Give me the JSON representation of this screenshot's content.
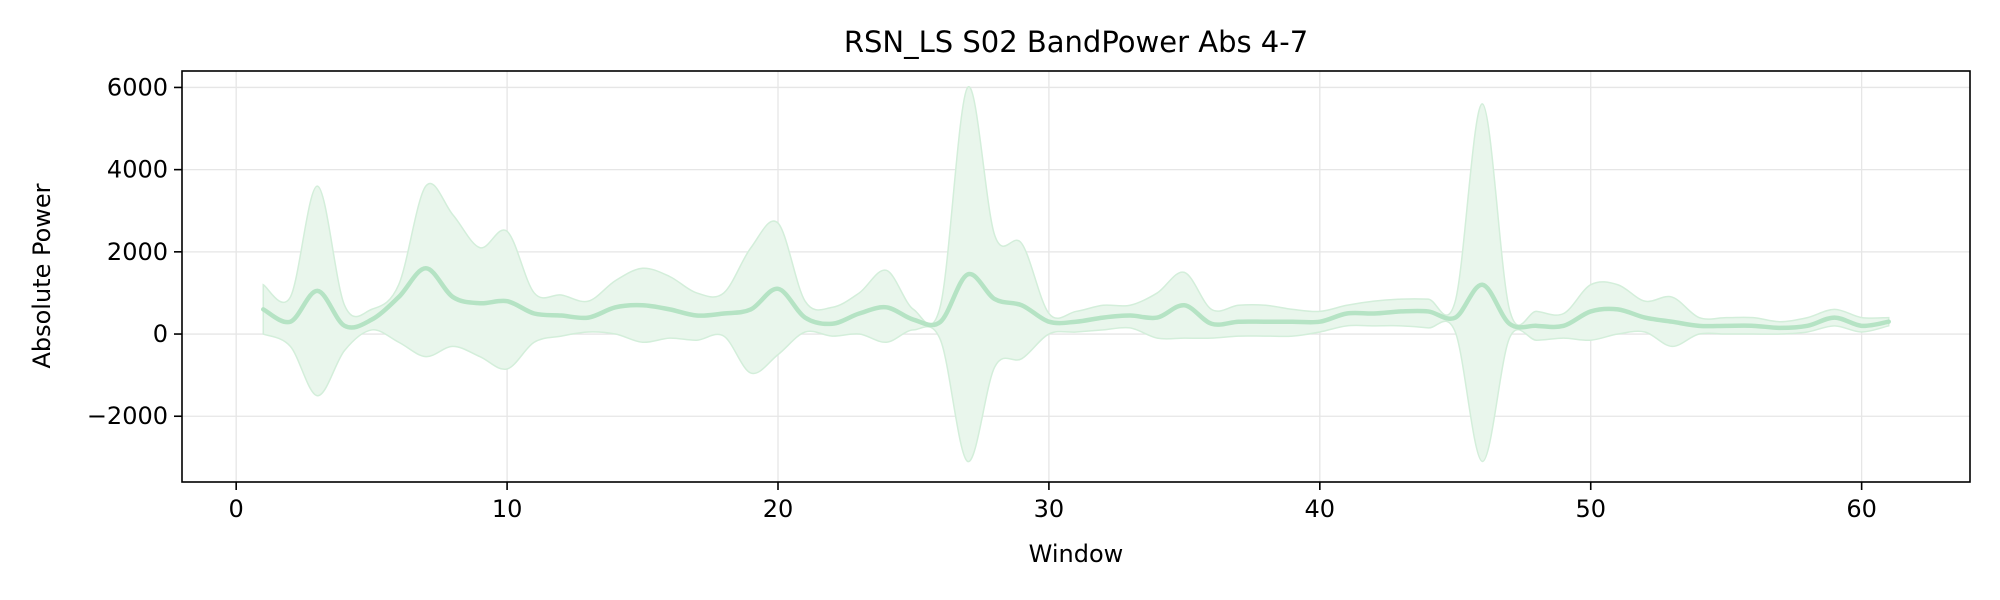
{
  "chart_data": {
    "type": "line",
    "title": "RSN_LS S02 BandPower Abs 4-7",
    "xlabel": "Window",
    "ylabel": "Absolute Power",
    "xlim": [
      -2,
      64
    ],
    "ylim": [
      -3600,
      6400
    ],
    "xticks": [
      0,
      10,
      20,
      30,
      40,
      50,
      60
    ],
    "xtick_labels": [
      "0",
      "10",
      "20",
      "30",
      "40",
      "50",
      "60"
    ],
    "yticks": [
      -2000,
      0,
      2000,
      4000,
      6000
    ],
    "ytick_labels": [
      "−2000",
      "0",
      "2000",
      "4000",
      "6000"
    ],
    "grid": true,
    "legend": "none",
    "colors": {
      "line": "#b5e3c4",
      "band_fill": "#e9f6ec",
      "band_edge": "#d3eeda"
    },
    "x": [
      1,
      2,
      3,
      4,
      5,
      6,
      7,
      8,
      9,
      10,
      11,
      12,
      13,
      14,
      15,
      16,
      17,
      18,
      19,
      20,
      21,
      22,
      23,
      24,
      25,
      26,
      27,
      28,
      29,
      30,
      31,
      32,
      33,
      34,
      35,
      36,
      37,
      38,
      39,
      40,
      41,
      42,
      43,
      44,
      45,
      46,
      47,
      48,
      49,
      50,
      51,
      52,
      53,
      54,
      55,
      56,
      57,
      58,
      59,
      60,
      61
    ],
    "series": [
      {
        "values": [
          600,
          300,
          1050,
          200,
          350,
          900,
          1600,
          900,
          750,
          800,
          500,
          450,
          400,
          650,
          700,
          600,
          450,
          500,
          600,
          1100,
          400,
          250,
          500,
          650,
          350,
          300,
          1450,
          850,
          700,
          300,
          300,
          400,
          450,
          400,
          700,
          250,
          300,
          300,
          300,
          300,
          500,
          500,
          550,
          550,
          400,
          1200,
          250,
          200,
          200,
          550,
          600,
          400,
          300,
          200,
          200,
          200,
          150,
          200,
          400,
          200,
          300
        ],
        "upper": [
          1200,
          900,
          3600,
          700,
          600,
          1200,
          3600,
          2900,
          2100,
          2500,
          1000,
          950,
          800,
          1300,
          1600,
          1400,
          1000,
          1000,
          2100,
          2700,
          800,
          650,
          1000,
          1550,
          600,
          700,
          6000,
          2400,
          2200,
          500,
          550,
          700,
          700,
          1000,
          1500,
          600,
          700,
          700,
          600,
          550,
          700,
          800,
          850,
          850,
          800,
          5600,
          600,
          550,
          500,
          1200,
          1200,
          800,
          900,
          400,
          400,
          400,
          300,
          400,
          600,
          400,
          400
        ],
        "lower": [
          0,
          -300,
          -1500,
          -400,
          100,
          -200,
          -550,
          -300,
          -550,
          -850,
          -200,
          -50,
          50,
          0,
          -200,
          -100,
          -150,
          -50,
          -950,
          -500,
          50,
          -50,
          0,
          -200,
          100,
          -150,
          -3100,
          -800,
          -600,
          0,
          50,
          100,
          150,
          -100,
          -100,
          -100,
          -50,
          -50,
          -50,
          50,
          200,
          200,
          200,
          150,
          50,
          -3100,
          -100,
          -150,
          -100,
          -150,
          0,
          50,
          -300,
          0,
          0,
          0,
          0,
          50,
          200,
          50,
          200
        ]
      }
    ]
  }
}
